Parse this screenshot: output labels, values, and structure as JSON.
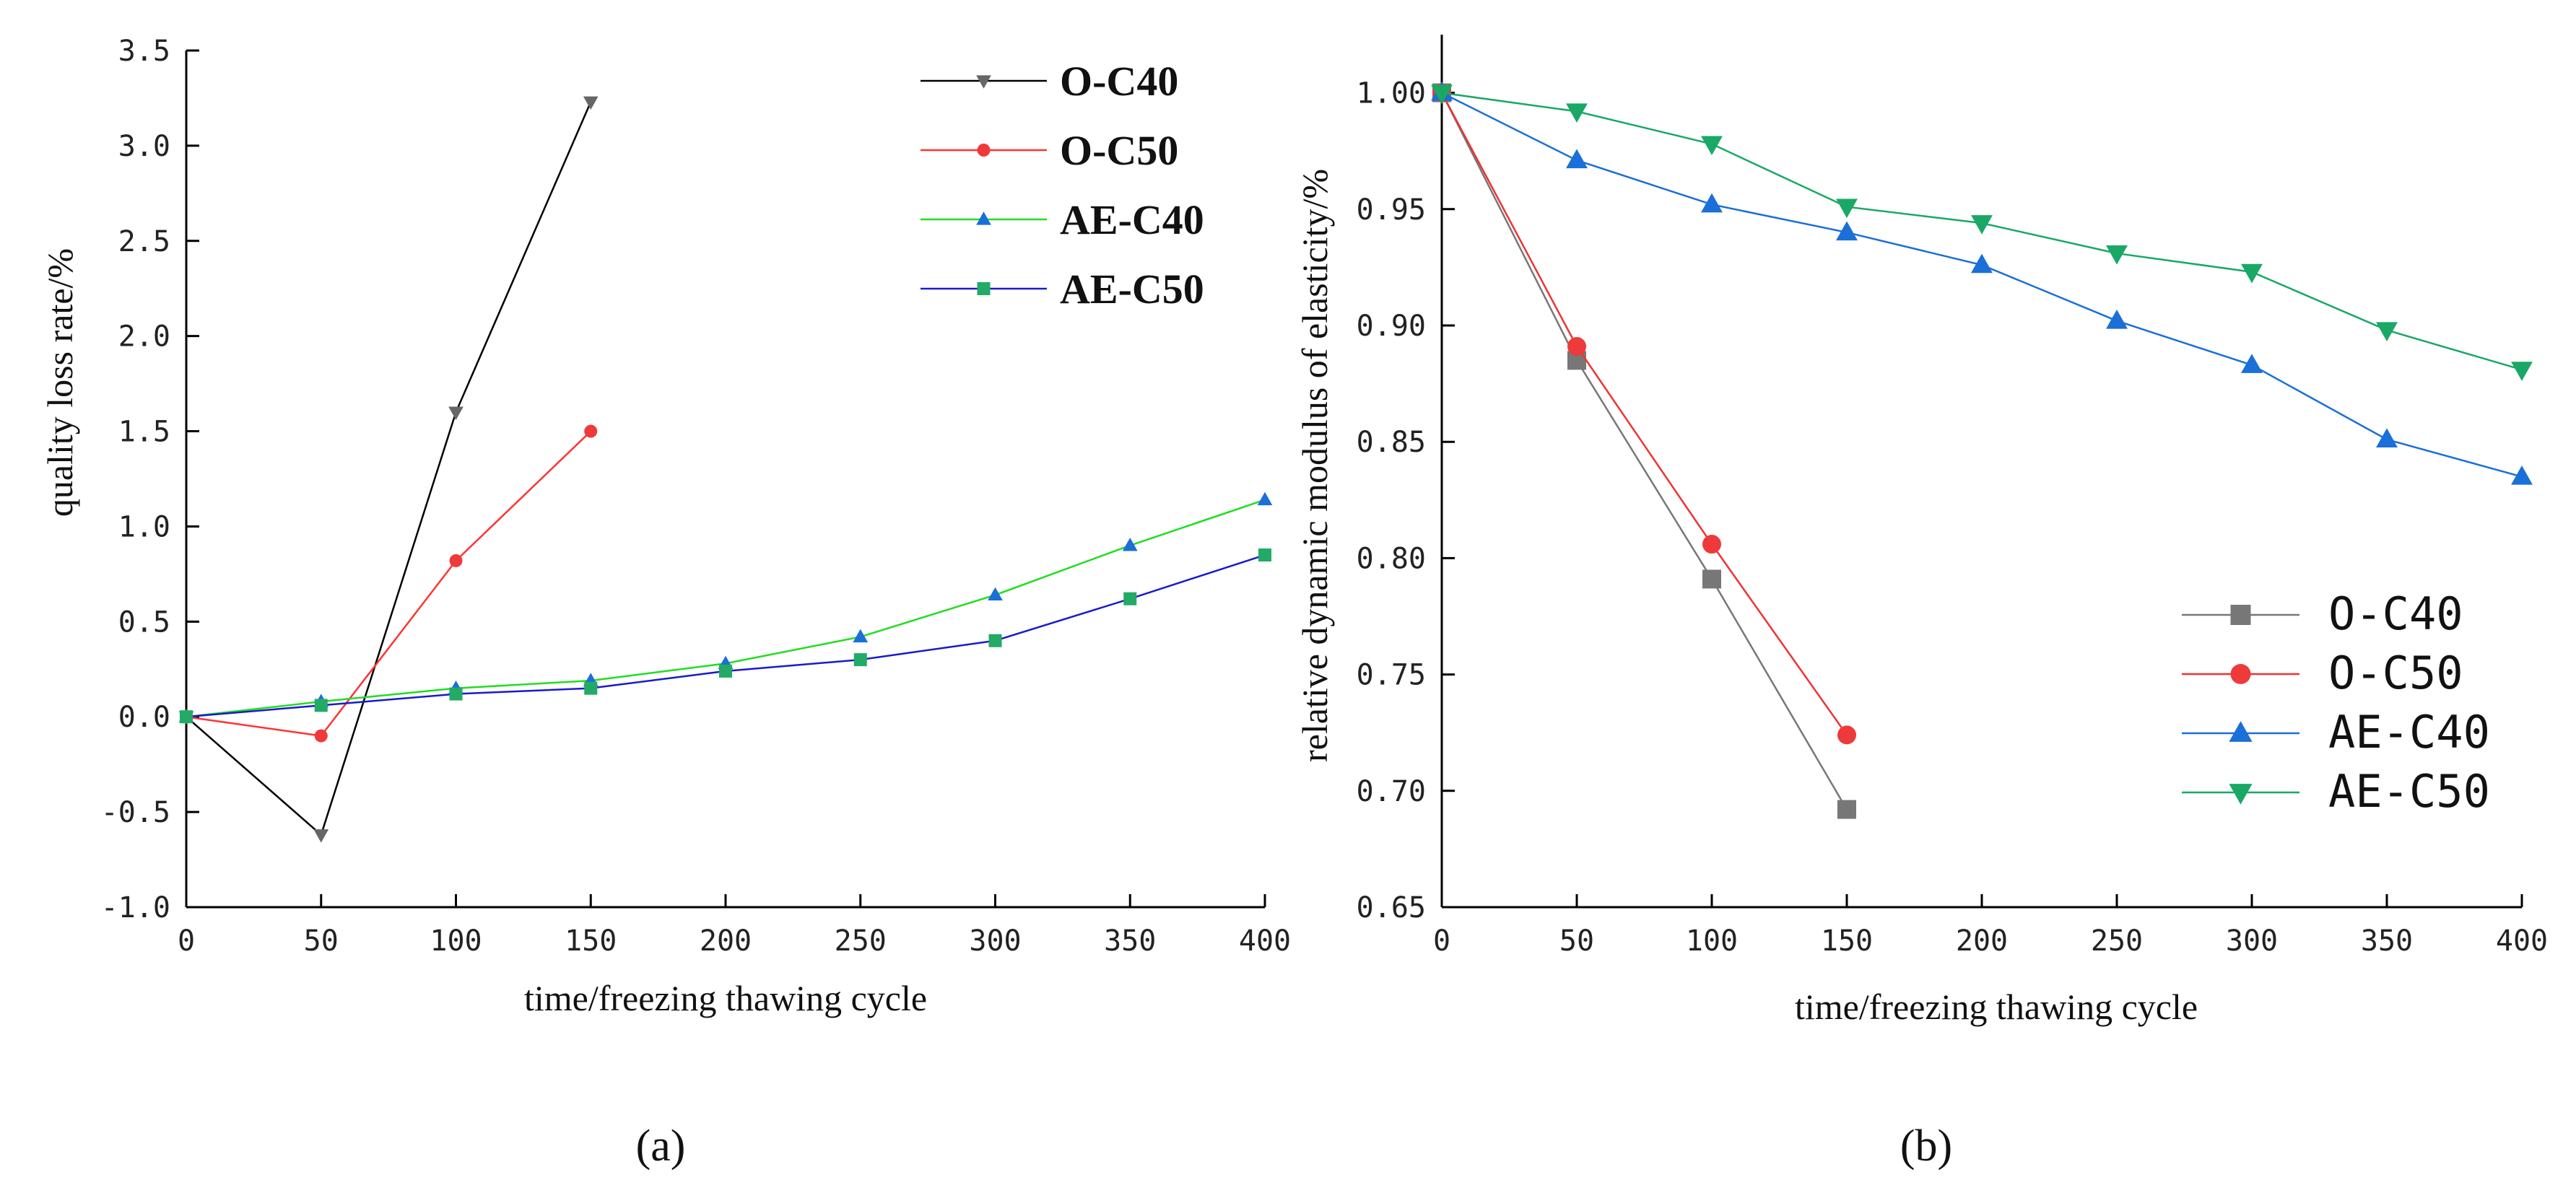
{
  "chart_data": [
    {
      "type": "line",
      "panel_label": "(a)",
      "xlabel": "time/freezing thawing cycle",
      "ylabel": "quality loss rate/%",
      "xlim": [
        0,
        400
      ],
      "ylim": [
        -1.0,
        3.5
      ],
      "x_ticks": [
        "0",
        "50",
        "100",
        "150",
        "200",
        "250",
        "300",
        "350",
        "400"
      ],
      "y_ticks": [
        "-1.0",
        "-0.5",
        "0.0",
        "0.5",
        "1.0",
        "1.5",
        "2.0",
        "2.5",
        "3.0",
        "3.5"
      ],
      "legend_position": "top-right",
      "series": [
        {
          "name": "O-C40",
          "color": "#000000",
          "marker_color": "#666666",
          "marker": "triangle-down",
          "x": [
            0,
            50,
            100,
            150
          ],
          "values": [
            0.0,
            -0.62,
            1.6,
            3.23
          ]
        },
        {
          "name": "O-C50",
          "color": "#ff3333",
          "marker_color": "#ee3a3a",
          "marker": "circle",
          "x": [
            0,
            50,
            100,
            150
          ],
          "values": [
            0.0,
            -0.1,
            0.82,
            1.5
          ]
        },
        {
          "name": "AE-C40",
          "color": "#22dd22",
          "marker_color": "#1a6fd8",
          "marker": "triangle-up",
          "x": [
            0,
            50,
            100,
            150,
            200,
            250,
            300,
            350,
            400
          ],
          "values": [
            0.0,
            0.08,
            0.15,
            0.19,
            0.28,
            0.42,
            0.64,
            0.9,
            1.14
          ]
        },
        {
          "name": "AE-C50",
          "color": "#1a1acc",
          "marker_color": "#22aa66",
          "marker": "square",
          "x": [
            0,
            50,
            100,
            150,
            200,
            250,
            300,
            350,
            400
          ],
          "values": [
            0.0,
            0.06,
            0.12,
            0.15,
            0.24,
            0.3,
            0.4,
            0.62,
            0.85
          ]
        }
      ]
    },
    {
      "type": "line",
      "panel_label": "(b)",
      "xlabel": "time/freezing thawing cycle",
      "ylabel": "relative dynamic modulus of elasticity/%",
      "xlim": [
        0,
        400
      ],
      "ylim": [
        0.65,
        1.025
      ],
      "x_ticks": [
        "0",
        "50",
        "100",
        "150",
        "200",
        "250",
        "300",
        "350",
        "400"
      ],
      "y_ticks": [
        "0.65",
        "0.70",
        "0.75",
        "0.80",
        "0.85",
        "0.90",
        "0.95",
        "1.00"
      ],
      "legend_position": "bottom-right",
      "series": [
        {
          "name": "O-C40",
          "color": "#777777",
          "marker_color": "#777777",
          "marker": "square",
          "x": [
            0,
            50,
            100,
            150
          ],
          "values": [
            1.0,
            0.885,
            0.791,
            0.692
          ]
        },
        {
          "name": "O-C50",
          "color": "#ee3333",
          "marker_color": "#ee3a3a",
          "marker": "circle",
          "x": [
            0,
            50,
            100,
            150
          ],
          "values": [
            1.0,
            0.891,
            0.806,
            0.724
          ]
        },
        {
          "name": "AE-C40",
          "color": "#1a6fd8",
          "marker_color": "#1a6fd8",
          "marker": "triangle-up",
          "x": [
            0,
            50,
            100,
            150,
            200,
            250,
            300,
            350,
            400
          ],
          "values": [
            1.0,
            0.971,
            0.952,
            0.94,
            0.926,
            0.902,
            0.883,
            0.851,
            0.835
          ]
        },
        {
          "name": "AE-C50",
          "color": "#1aa866",
          "marker_color": "#1aa866",
          "marker": "triangle-down",
          "x": [
            0,
            50,
            100,
            150,
            200,
            250,
            300,
            350,
            400
          ],
          "values": [
            1.0,
            0.992,
            0.978,
            0.951,
            0.944,
            0.931,
            0.923,
            0.898,
            0.881
          ]
        }
      ]
    }
  ]
}
